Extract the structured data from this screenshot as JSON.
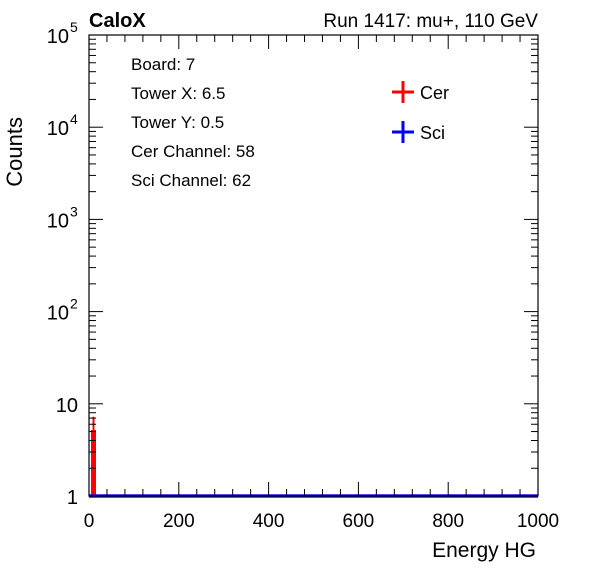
{
  "header": {
    "brand": "CaloX",
    "run_info": "Run 1417: mu+, 110 GeV"
  },
  "info_box": {
    "lines": [
      "Board: 7",
      "Tower X: 6.5",
      "Tower Y: 0.5",
      "Cer Channel: 58",
      "Sci Channel: 62"
    ]
  },
  "colors": {
    "cer": "#ff0000",
    "sci": "#0000ff",
    "axis": "#000000"
  },
  "chart_data": {
    "type": "line",
    "title": "",
    "xlabel": "Energy HG",
    "ylabel": "Counts",
    "xlim": [
      0,
      1000
    ],
    "ylim": [
      1,
      100000
    ],
    "ylog": true,
    "grid": false,
    "legend": "top-right",
    "x_ticks": [
      {
        "value": 0,
        "label": "0"
      },
      {
        "value": 200,
        "label": "200"
      },
      {
        "value": 400,
        "label": "400"
      },
      {
        "value": 600,
        "label": "600"
      },
      {
        "value": 800,
        "label": "800"
      },
      {
        "value": 1000,
        "label": "1000"
      }
    ],
    "y_ticks": [
      {
        "value": 1,
        "base": "1",
        "exp": ""
      },
      {
        "value": 10,
        "base": "10",
        "exp": ""
      },
      {
        "value": 100,
        "base": "10",
        "exp": "2"
      },
      {
        "value": 1000,
        "base": "10",
        "exp": "3"
      },
      {
        "value": 10000,
        "base": "10",
        "exp": "4"
      },
      {
        "value": 100000,
        "base": "10",
        "exp": "5"
      }
    ],
    "bin_width": 4,
    "series": [
      {
        "name": "Cer",
        "color": "#ff0000",
        "x": [
          0,
          4,
          8,
          12,
          16,
          20,
          24,
          28,
          32,
          36,
          40,
          44,
          48,
          52,
          56,
          60,
          64,
          68,
          72,
          76,
          80,
          84,
          88,
          92,
          96,
          100,
          104,
          108,
          112,
          116,
          120,
          124,
          128,
          132,
          136,
          140,
          144,
          148,
          152,
          156,
          160,
          164,
          168,
          172,
          176,
          180,
          184,
          188,
          192,
          196,
          200,
          204,
          208,
          212,
          216,
          220,
          224,
          228,
          232,
          236,
          240,
          244,
          248,
          252,
          256,
          260,
          264,
          268,
          272,
          276,
          280,
          284,
          288,
          292,
          296,
          300,
          304,
          308,
          312,
          316,
          320,
          324,
          328,
          332,
          336,
          340,
          344,
          348,
          352,
          356,
          360,
          364,
          368,
          372,
          376,
          380,
          384,
          388,
          392,
          396,
          400,
          404,
          408,
          412,
          416,
          420,
          424,
          428,
          432,
          436,
          440,
          444
        ],
        "y": [
          1,
          1,
          5,
          1,
          1,
          1,
          1,
          1,
          1,
          1,
          1,
          1,
          1,
          1,
          1,
          1,
          1,
          1,
          1,
          1,
          1,
          1,
          1,
          1,
          1,
          1,
          1,
          1,
          1,
          1,
          1,
          1,
          1,
          1,
          1,
          1,
          1,
          1,
          1,
          1,
          1,
          1,
          1,
          1,
          1,
          1,
          1,
          1,
          1,
          1,
          1,
          1,
          1,
          1,
          1,
          1,
          1,
          1,
          1,
          1,
          1,
          1,
          1,
          1,
          1,
          1,
          1,
          1,
          1,
          1,
          1,
          1,
          1,
          1,
          1,
          1,
          1,
          1,
          1,
          1,
          1,
          1,
          1,
          1,
          1,
          1,
          1,
          1,
          1,
          1,
          1,
          1,
          1,
          1,
          1,
          1,
          1,
          1,
          1,
          1,
          1,
          1,
          1,
          1,
          1,
          1,
          1,
          1,
          1,
          1,
          1,
          1
        ]
      },
      {
        "name": "Sci",
        "color": "#0000ff",
        "x": [
          0,
          4,
          8,
          12,
          16,
          20,
          24,
          28,
          32,
          36,
          40,
          44,
          48,
          52,
          56,
          60,
          64,
          68,
          72,
          76,
          80,
          84,
          88,
          92,
          96,
          100,
          104,
          108,
          112,
          116,
          120,
          124,
          128,
          132,
          136,
          140,
          144,
          148,
          152,
          156,
          160,
          164,
          168,
          172,
          176,
          180,
          184,
          188,
          192,
          196,
          200,
          204,
          208,
          212,
          216,
          220,
          224,
          228,
          232,
          236,
          240,
          244,
          248,
          252,
          256,
          260,
          264,
          268,
          272,
          276,
          280,
          284,
          288,
          292,
          296,
          300,
          304,
          308,
          312,
          316,
          320,
          324,
          328,
          332,
          336,
          340,
          344,
          348,
          352,
          356,
          360,
          364,
          368,
          372,
          376,
          380,
          384,
          388,
          392,
          396,
          400,
          404,
          408,
          412,
          416,
          420,
          424,
          428,
          432,
          436,
          440,
          444
        ],
        "y": [
          1,
          1,
          1,
          1,
          1,
          1,
          1,
          1,
          1,
          1,
          1,
          1,
          1,
          1,
          1,
          1,
          1,
          1,
          1,
          1,
          1,
          1,
          1,
          1,
          1,
          1,
          1,
          1,
          1,
          1,
          1,
          1,
          1,
          1,
          1,
          1,
          1,
          1,
          1,
          1,
          1,
          1,
          1,
          1,
          1,
          1,
          1,
          1,
          1,
          1,
          1,
          1,
          1,
          1,
          1,
          1,
          1,
          1,
          1,
          1,
          1,
          1,
          1,
          1,
          1,
          1,
          1,
          1,
          1,
          1,
          1,
          1,
          1,
          1,
          1,
          1,
          1,
          1,
          1,
          1,
          1,
          1,
          1,
          1,
          1,
          1,
          1,
          1,
          1,
          1,
          1,
          1,
          1,
          1,
          1,
          1,
          1,
          1,
          1,
          1,
          1,
          1,
          1,
          1,
          1,
          1,
          1,
          1,
          1,
          1,
          1,
          1
        ]
      }
    ]
  }
}
